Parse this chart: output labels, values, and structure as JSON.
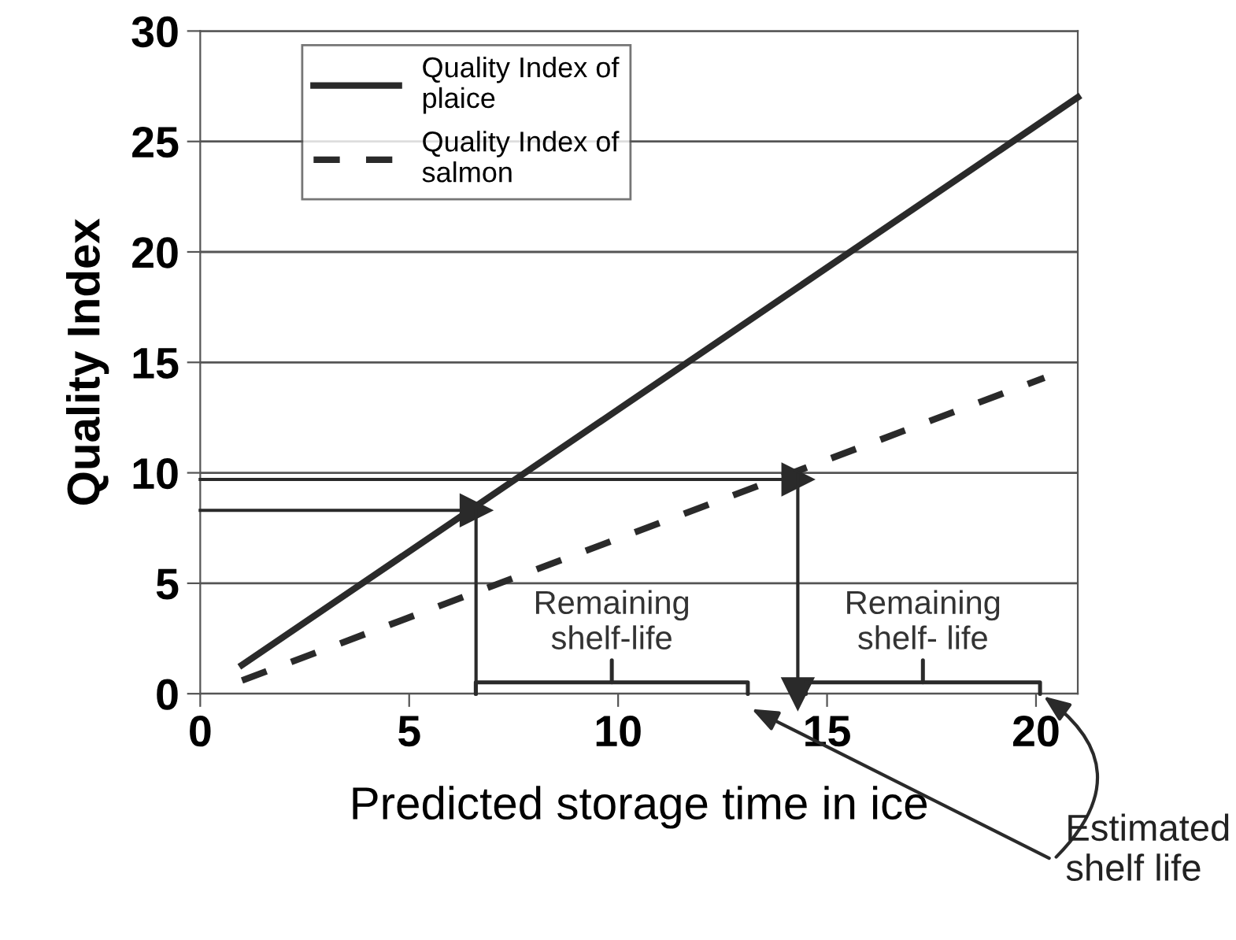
{
  "chart_data": {
    "type": "line",
    "xlabel": "Predicted storage time in ice",
    "ylabel": "Quality Index",
    "xlim": [
      0,
      21
    ],
    "xticks": [
      0,
      5,
      10,
      15,
      20
    ],
    "ylim": [
      0,
      30
    ],
    "yticks": [
      0,
      5,
      10,
      15,
      20,
      25,
      30
    ],
    "grid": "y",
    "legend": "top left",
    "series": [
      {
        "name": "Quality Index of\nplaice",
        "color": "#2a2a2a",
        "x": [
          1,
          21
        ],
        "values": [
          1.3,
          27.0
        ],
        "line_style": "solid"
      },
      {
        "name": "Quality Index of\nsalmon",
        "color": "#2a2a2a",
        "x": [
          1,
          20.2
        ],
        "values": [
          0.6,
          14.3
        ],
        "line_style": "dashed"
      },
      {
        "color": "#2a2a2a",
        "x": [
          0,
          6.6
        ],
        "values": [
          8.3,
          8.3
        ],
        "line_style": "solid",
        "marker": "triangle"
      },
      {
        "color": "#2a2a2a",
        "x": [
          0,
          14.3
        ],
        "values": [
          9.7,
          9.7
        ],
        "line_style": "solid",
        "marker": "triangle"
      },
      {
        "color": "#2a2a2a",
        "x": [
          6.6,
          6.6
        ],
        "values": [
          8.3,
          0
        ],
        "line_style": "solid"
      },
      {
        "color": "#2a2a2a",
        "x": [
          14.3,
          14.3
        ],
        "values": [
          9.9,
          0
        ],
        "line_style": "solid",
        "marker": "triangle"
      }
    ],
    "annotations": [
      "Remaining\nshelf-life",
      "Remaining\nshelf- life",
      "Estimated\nshelf life"
    ]
  }
}
